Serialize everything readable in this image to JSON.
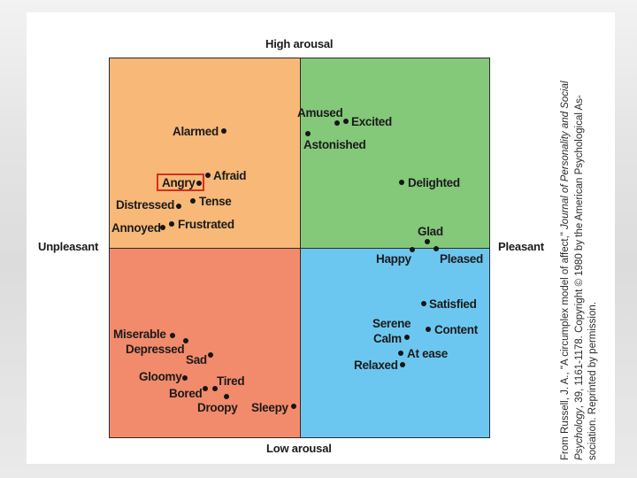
{
  "axes": {
    "top": "High arousal",
    "bottom": "Low arousal",
    "left": "Unpleasant",
    "right": "Pleasant"
  },
  "emotions": {
    "alarmed": "Alarmed",
    "afraid": "Afraid",
    "angry": "Angry",
    "tense": "Tense",
    "distressed": "Distressed",
    "annoyed": "Annoyed",
    "frustrated": "Frustrated",
    "amused": "Amused",
    "excited": "Excited",
    "astonished": "Astonished",
    "delighted": "Delighted",
    "glad": "Glad",
    "happy": "Happy",
    "pleased": "Pleased",
    "miserable": "Miserable",
    "depressed": "Depressed",
    "sad": "Sad",
    "gloomy": "Gloomy",
    "tired": "Tired",
    "bored": "Bored",
    "droopy": "Droopy",
    "sleepy": "Sleepy",
    "satisfied": "Satisfied",
    "serene": "Serene",
    "content": "Content",
    "calm": "Calm",
    "at_ease": "At ease",
    "relaxed": "Relaxed"
  },
  "colors": {
    "high_unpleasant": "#f7b878",
    "high_pleasant": "#84c87a",
    "low_unpleasant": "#f28b6b",
    "low_pleasant": "#6cc7f0",
    "highlight": "#d62f1f"
  },
  "credit": {
    "line1_a": "From Russell, J. A., \"A circumplex model of affect,\" ",
    "line1_b": "Journal of Personality and Social",
    "line2_a": "Psychology",
    "line2_b": ", 39, 1161-1178. Copyright © 1980 by the American Psychological As-",
    "line3": "sociation. Reprinted by permission."
  }
}
